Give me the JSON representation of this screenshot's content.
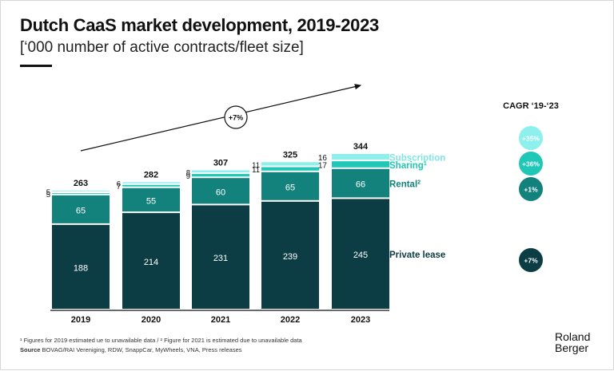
{
  "header": {
    "title": "Dutch CaaS market development, 2019-2023",
    "subtitle": "[‘000 number of active contracts/fleet size]"
  },
  "cagr_header": "CAGR ‘19-‘23",
  "trend_label": "+7%",
  "colors": {
    "private_lease": "#0c3c44",
    "rental": "#13827c",
    "sharing": "#1fc7b6",
    "subscription": "#8ef0ec",
    "text_dark": "#111111"
  },
  "chart_data": {
    "type": "bar",
    "stacked": true,
    "title": "Dutch CaaS market development, 2019-2023",
    "unit": "‘000 number of active contracts/fleet size",
    "categories": [
      "2019",
      "2020",
      "2021",
      "2022",
      "2023"
    ],
    "series": [
      {
        "name": "Private lease",
        "values": [
          188,
          214,
          231,
          239,
          245
        ],
        "cagr": "+7%"
      },
      {
        "name": "Rental",
        "superscript": "2",
        "values": [
          65,
          55,
          60,
          65,
          66
        ],
        "cagr": "+1%"
      },
      {
        "name": "Sharing",
        "superscript": "1",
        "values": [
          5,
          7,
          9,
          11,
          17
        ],
        "cagr": "+36%"
      },
      {
        "name": "Subscription",
        "values": [
          5,
          6,
          8,
          11,
          16
        ],
        "cagr": "+35%"
      }
    ],
    "totals": [
      263,
      282,
      307,
      325,
      344
    ],
    "ylim": [
      0,
      344
    ]
  },
  "footnotes": {
    "note": "¹ Figures for 2019 estimated ue to unavailable data / ² Figure for 2021 is estimated due to unavailable data",
    "source_label": "Source",
    "source_text": "BOVAG/RAI Vereniging, RDW, SnappCar, MyWheels, VNA, Press releases"
  },
  "brand": {
    "line1": "Roland",
    "line2": "Berger"
  }
}
